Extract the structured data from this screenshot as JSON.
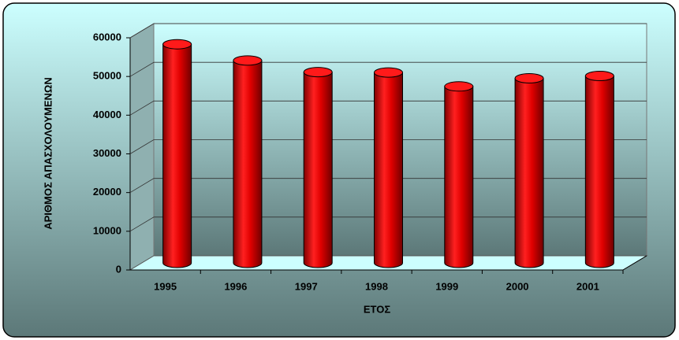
{
  "chart_data": {
    "type": "bar",
    "x_label": "ΕΤΟΣ",
    "y_label": "ΑΡΙΘΜΟΣ ΑΠΑΣΧΟΛΟΥΜΕΝΩΝ",
    "categories": [
      "1995",
      "1996",
      "1997",
      "1998",
      "1999",
      "2000",
      "2001"
    ],
    "values": [
      56500,
      52300,
      49300,
      49200,
      45600,
      47700,
      48300
    ],
    "color": "#e00000",
    "ylim": [
      0,
      60000
    ],
    "yticks": [
      0,
      10000,
      20000,
      30000,
      40000,
      50000,
      60000
    ],
    "grid": true
  }
}
